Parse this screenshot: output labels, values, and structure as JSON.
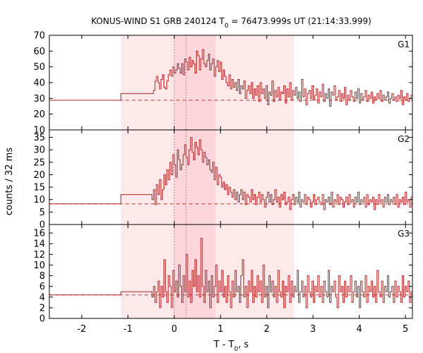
{
  "chart_data": {
    "type": "line",
    "title_parts": [
      "KONUS-WIND S1 GRB 240124 T",
      "0",
      " = 76473.999s UT (21:14:33.999)"
    ],
    "xlabel_parts": [
      "T - T",
      "0",
      ", s"
    ],
    "ylabel": "counts / 32 ms",
    "xlim": [
      -2.7,
      5.15
    ],
    "xticks": [
      -2,
      -1,
      0,
      1,
      2,
      3,
      4,
      5
    ],
    "shaded_regions": [
      {
        "x0": -1.152,
        "x1": 2.592,
        "color": "#fde8ea"
      },
      {
        "x0": 0.0,
        "x1": 0.896,
        "color": "#fbd6da"
      }
    ],
    "vlines": [
      0.0,
      0.256
    ],
    "colors": {
      "line": "#b22222",
      "background_line": "#c0392b",
      "dotted": "#b06070"
    },
    "panels": [
      {
        "name": "G1",
        "ylim": [
          10,
          70
        ],
        "yticks": [
          10,
          20,
          30,
          40,
          50,
          60,
          70
        ],
        "background": 28.8,
        "pre_segments": [
          {
            "x0": -2.7,
            "x1": -1.152,
            "y": 28.8
          },
          {
            "x0": -1.152,
            "x1": -0.48,
            "y": 33.0
          }
        ],
        "t0": -0.48,
        "dt": 0.032,
        "values": [
          33,
          35,
          41,
          44,
          40,
          36,
          42,
          45,
          37,
          36,
          41,
          45,
          48,
          44,
          50,
          46,
          48,
          52,
          49,
          46,
          52,
          45,
          55,
          53,
          48,
          56,
          50,
          54,
          52,
          46,
          60,
          57,
          48,
          55,
          61,
          52,
          50,
          54,
          58,
          48,
          52,
          55,
          44,
          50,
          54,
          47,
          53,
          42,
          48,
          44,
          40,
          38,
          45,
          36,
          42,
          37,
          40,
          35,
          42,
          33,
          38,
          36,
          41,
          30,
          35,
          38,
          33,
          40,
          30,
          36,
          32,
          38,
          28,
          40,
          33,
          36,
          30,
          38,
          26,
          34,
          32,
          41,
          28,
          35,
          31,
          37,
          29,
          34,
          33,
          38,
          27,
          36,
          31,
          40,
          29,
          35,
          32,
          37,
          30,
          34,
          28,
          42,
          31,
          36,
          26,
          33,
          35,
          30,
          38,
          29,
          32,
          36,
          27,
          34,
          31,
          39,
          28,
          33,
          30,
          36,
          25,
          34,
          32,
          38,
          29,
          31,
          35,
          28,
          33,
          30,
          37,
          26,
          32,
          29,
          35,
          31,
          28,
          34,
          30,
          36,
          27,
          33,
          29,
          31,
          35,
          28,
          32,
          30,
          34,
          27,
          31,
          29,
          33,
          30,
          35,
          28,
          32,
          29,
          31,
          34,
          27,
          30,
          33,
          29,
          31,
          28,
          32,
          30,
          35,
          26,
          31,
          29,
          33,
          28,
          30,
          32,
          27,
          31,
          34,
          29,
          30,
          28,
          32,
          36,
          27,
          31,
          29,
          33,
          30,
          28,
          35,
          31,
          27,
          33,
          29,
          31,
          28,
          34,
          30,
          32,
          29,
          31,
          28,
          33,
          30,
          36,
          27,
          32,
          29,
          31,
          33,
          28,
          30,
          35,
          29,
          32,
          27,
          31,
          30,
          33,
          28,
          34,
          29,
          31,
          32,
          27,
          30,
          36,
          29,
          33,
          28,
          31,
          30,
          32
        ]
      },
      {
        "name": "G2",
        "ylim": [
          0,
          38
        ],
        "yticks": [
          0,
          5,
          10,
          15,
          20,
          25,
          30,
          35
        ],
        "background": 8.3,
        "pre_segments": [
          {
            "x0": -2.7,
            "x1": -1.152,
            "y": 8.3
          },
          {
            "x0": -1.152,
            "x1": -0.48,
            "y": 12.0
          }
        ],
        "t0": -0.48,
        "dt": 0.032,
        "values": [
          10,
          14,
          8,
          16,
          12,
          18,
          10,
          14,
          20,
          16,
          22,
          18,
          25,
          20,
          28,
          24,
          19,
          30,
          26,
          22,
          24,
          28,
          32,
          27,
          24,
          30,
          35,
          29,
          26,
          33,
          31,
          28,
          34,
          30,
          25,
          29,
          27,
          24,
          26,
          22,
          21,
          25,
          18,
          23,
          16,
          20,
          19,
          15,
          17,
          14,
          16,
          12,
          15,
          13,
          11,
          14,
          10,
          13,
          9,
          12,
          14,
          10,
          13,
          8,
          12,
          11,
          9,
          14,
          10,
          12,
          8,
          11,
          13,
          9,
          12,
          10,
          7,
          11,
          13,
          9,
          12,
          8,
          10,
          14,
          9,
          11,
          7,
          12,
          10,
          13,
          8,
          9,
          11,
          6,
          10,
          12,
          8,
          11,
          9,
          13,
          7,
          10,
          9,
          12,
          8,
          11,
          10,
          7,
          9,
          12,
          8,
          10,
          11,
          9,
          8,
          12,
          6,
          10,
          9,
          11,
          8,
          13,
          7,
          10,
          9,
          12,
          8,
          11,
          10,
          7,
          9,
          11,
          8,
          12,
          9,
          10,
          7,
          11,
          9,
          13,
          8,
          10,
          9,
          11,
          7,
          12,
          8,
          10,
          9,
          11,
          6,
          10,
          8,
          12,
          9,
          10,
          7,
          11,
          9,
          12,
          8,
          10,
          9,
          11,
          8,
          12,
          7,
          10,
          9,
          11,
          8,
          13,
          9,
          10,
          7,
          11,
          8,
          12,
          9,
          10,
          8,
          11,
          7,
          12,
          9,
          10,
          8,
          13,
          9,
          11,
          7,
          10,
          8,
          12,
          9,
          11,
          8,
          10,
          7,
          12,
          9,
          10,
          8,
          11,
          9,
          13,
          8,
          10,
          7,
          11,
          9,
          12,
          8,
          10,
          9,
          11,
          7,
          12,
          8,
          13,
          9,
          10,
          8,
          11,
          9,
          12,
          7,
          10,
          8,
          11,
          9,
          12,
          8,
          10,
          9,
          11,
          8,
          13,
          7,
          10
        ]
      },
      {
        "name": "G3",
        "ylim": [
          0,
          17.6
        ],
        "yticks": [
          0,
          2,
          4,
          6,
          8,
          10,
          12,
          14,
          16
        ],
        "background": 4.4,
        "pre_segments": [
          {
            "x0": -2.7,
            "x1": -1.152,
            "y": 4.4
          },
          {
            "x0": -1.152,
            "x1": -0.48,
            "y": 5.0
          }
        ],
        "t0": -0.48,
        "dt": 0.032,
        "values": [
          4,
          6,
          3,
          5,
          7,
          2,
          6,
          4,
          11,
          5,
          3,
          8,
          6,
          2,
          9,
          5,
          7,
          4,
          10,
          6,
          3,
          8,
          5,
          12,
          4,
          7,
          3,
          9,
          6,
          11,
          5,
          8,
          4,
          15,
          6,
          3,
          9,
          5,
          7,
          2,
          8,
          4,
          6,
          10,
          3,
          7,
          5,
          9,
          4,
          6,
          3,
          8,
          5,
          2,
          7,
          4,
          9,
          5,
          6,
          3,
          8,
          11,
          4,
          6,
          2,
          7,
          5,
          9,
          3,
          6,
          4,
          8,
          5,
          7,
          3,
          10,
          4,
          6,
          2,
          8,
          5,
          7,
          4,
          6,
          3,
          9,
          5,
          4,
          7,
          2,
          6,
          5,
          8,
          3,
          7,
          4,
          6,
          5,
          9,
          3,
          5,
          7,
          4,
          6,
          2,
          8,
          5,
          4,
          7,
          3,
          6,
          5,
          8,
          4,
          6,
          3,
          7,
          5,
          4,
          9,
          3,
          6,
          5,
          7,
          4,
          2,
          8,
          5,
          6,
          3,
          7,
          4,
          6,
          5,
          8,
          3,
          5,
          7,
          4,
          6,
          2,
          7,
          5,
          4,
          8,
          3,
          6,
          5,
          7,
          4,
          6,
          3,
          9,
          5,
          4,
          7,
          3,
          6,
          5,
          8,
          4,
          5,
          6,
          3,
          7,
          4,
          6,
          5,
          3,
          8,
          4,
          6,
          5,
          7,
          3,
          5,
          4,
          8,
          6,
          3,
          7,
          4,
          5,
          6,
          3,
          8,
          4,
          6,
          5,
          7,
          2,
          6,
          4,
          5,
          7,
          3,
          6,
          5,
          4,
          8,
          3,
          6,
          5,
          7,
          4,
          5,
          3,
          6,
          7,
          4,
          5,
          3,
          8,
          4,
          6,
          5,
          3,
          7,
          4,
          6,
          5,
          4,
          7,
          3,
          6,
          5,
          4,
          8,
          3,
          6,
          4,
          7,
          5,
          3,
          6,
          4
        ]
      }
    ]
  }
}
